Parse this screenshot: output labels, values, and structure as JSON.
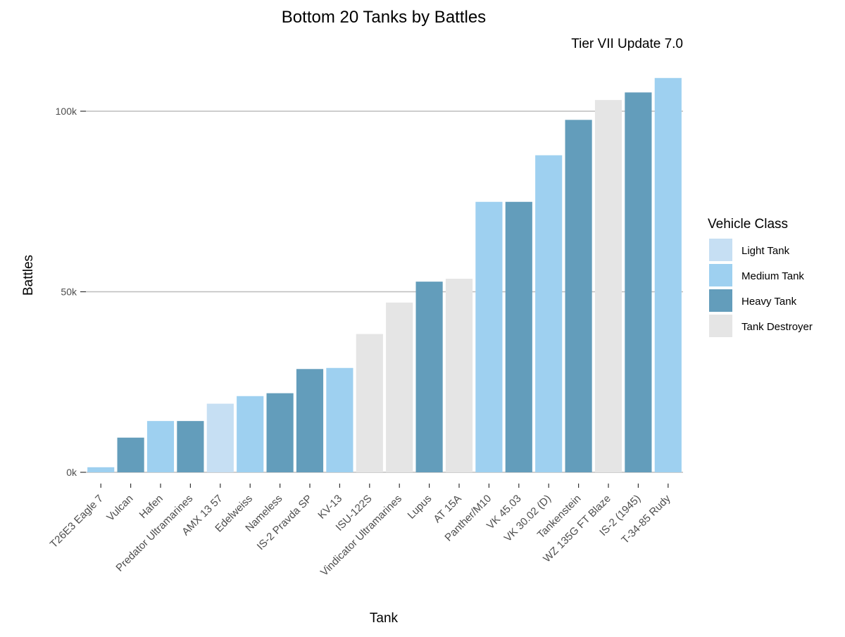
{
  "chart_data": {
    "type": "bar",
    "title": "Bottom 20 Tanks by Battles",
    "subtitle": "Tier VII Update 7.0",
    "xlabel": "Tank",
    "ylabel": "Battles",
    "ylim": [
      0,
      110000
    ],
    "yticks": [
      {
        "value": 0,
        "label": "0k"
      },
      {
        "value": 50000,
        "label": "50k"
      },
      {
        "value": 100000,
        "label": "100k"
      }
    ],
    "grid": "horizontal major gridlines",
    "legend": {
      "title": "Vehicle Class",
      "position": "right",
      "entries": [
        {
          "label": "Light Tank",
          "color": "#c6dff3"
        },
        {
          "label": "Medium Tank",
          "color": "#9ed0f0"
        },
        {
          "label": "Heavy Tank",
          "color": "#639dbb"
        },
        {
          "label": "Tank Destroyer",
          "color": "#e5e5e5"
        }
      ]
    },
    "categories": [
      "T26E3 Eagle 7",
      "Vulcan",
      "Hafen",
      "Predator Ultramarines",
      "AMX 13 57",
      "Edelweiss",
      "Nameless",
      "IS-2 Pravda SP",
      "KV-13",
      "ISU-122S",
      "Vindicator Ultramarines",
      "Lupus",
      "AT 15A",
      "Panther/M10",
      "VK 45.03",
      "VK 30.02 (D)",
      "Tankenstein",
      "WZ 135G FT Blaze",
      "IS-2 (1945)",
      "T-34-85 Rudy"
    ],
    "classes": [
      "Medium Tank",
      "Heavy Tank",
      "Medium Tank",
      "Heavy Tank",
      "Light Tank",
      "Medium Tank",
      "Heavy Tank",
      "Heavy Tank",
      "Medium Tank",
      "Tank Destroyer",
      "Tank Destroyer",
      "Heavy Tank",
      "Tank Destroyer",
      "Medium Tank",
      "Heavy Tank",
      "Medium Tank",
      "Heavy Tank",
      "Tank Destroyer",
      "Heavy Tank",
      "Medium Tank"
    ],
    "values": [
      1400,
      9600,
      14200,
      14200,
      19000,
      21100,
      21900,
      28600,
      28900,
      38300,
      47000,
      52800,
      53600,
      74900,
      74900,
      87800,
      97600,
      103100,
      105200,
      109200
    ]
  }
}
